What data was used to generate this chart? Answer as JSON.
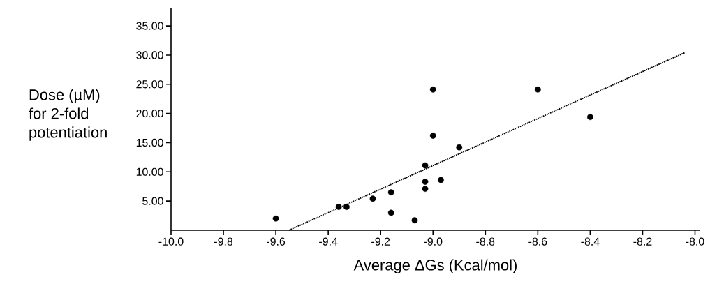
{
  "chart_data": {
    "type": "scatter",
    "xlabel": "Average ΔGs (Kcal/mol)",
    "ylabel": "Dose (µM)\nfor 2-fold\npotentiation",
    "xlim": [
      -10,
      -7.98
    ],
    "ylim": [
      0,
      38
    ],
    "xticks": [
      {
        "value": -10,
        "label": "-10.0"
      },
      {
        "value": -9.8,
        "label": "-9.8"
      },
      {
        "value": -9.6,
        "label": "-9.6"
      },
      {
        "value": -9.4,
        "label": "-9.4"
      },
      {
        "value": -9.2,
        "label": "-9.2"
      },
      {
        "value": -9.0,
        "label": "-9.0"
      },
      {
        "value": -8.8,
        "label": "-8.8"
      },
      {
        "value": -8.6,
        "label": "-8.6"
      },
      {
        "value": -8.4,
        "label": "-8.4"
      },
      {
        "value": -8.2,
        "label": "-8.2"
      },
      {
        "value": -8.0,
        "label": "-8.0"
      }
    ],
    "yticks": [
      {
        "value": 5,
        "label": "5.00"
      },
      {
        "value": 10,
        "label": "10.00"
      },
      {
        "value": 15,
        "label": "15.00"
      },
      {
        "value": 20,
        "label": "20.00"
      },
      {
        "value": 25,
        "label": "25.00"
      },
      {
        "value": 30,
        "label": "30.00"
      },
      {
        "value": 35,
        "label": "35.00"
      }
    ],
    "grid": false,
    "legend": false,
    "series": [
      {
        "color": "#000000",
        "marker": "circle",
        "x": [
          -9.6,
          -9.36,
          -9.33,
          -9.23,
          -9.16,
          -9.16,
          -9.07,
          -9.03,
          -9.03,
          -9.03,
          -9.0,
          -9.0,
          -8.97,
          -8.9,
          -8.6,
          -8.4
        ],
        "values": [
          2.0,
          4.0,
          4.0,
          5.4,
          6.5,
          3.0,
          1.7,
          7.1,
          8.3,
          11.1,
          16.2,
          24.1,
          8.6,
          14.2,
          24.1,
          19.4
        ]
      },
      {
        "type": "line",
        "color": "#000000",
        "marker": "none",
        "line_style": "dotted",
        "x": [
          -9.55,
          -8.04
        ],
        "values": [
          0,
          30.4
        ]
      }
    ]
  }
}
